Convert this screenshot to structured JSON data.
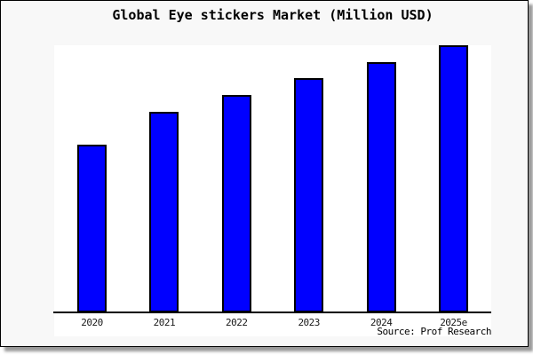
{
  "chart": {
    "title": "Global Eye stickers Market (Million USD)",
    "source": "Source: Prof Research"
  },
  "chart_data": {
    "type": "bar",
    "title": "Global Eye stickers Market (Million USD)",
    "categories": [
      "2020",
      "2021",
      "2022",
      "2023",
      "2024",
      "2025e"
    ],
    "values": [
      189,
      226,
      245,
      264,
      282,
      301
    ],
    "value_note": "relative heights; chart displays no y-axis scale or data labels",
    "xlabel": "",
    "ylabel": "",
    "ylim": [
      0,
      301
    ],
    "y_axis_labeled": false,
    "grid": false,
    "legend": false,
    "source_annotation": "Source: Prof Research"
  },
  "colors": {
    "canvas_background": "#f8f8f8",
    "plot_background": "#ffffff",
    "bar_fill": "#0000ff",
    "bar_border": "#000000",
    "axis": "#000000",
    "text": "#000000",
    "frame_border": "#000000",
    "shadow": "#9a9a9a"
  }
}
